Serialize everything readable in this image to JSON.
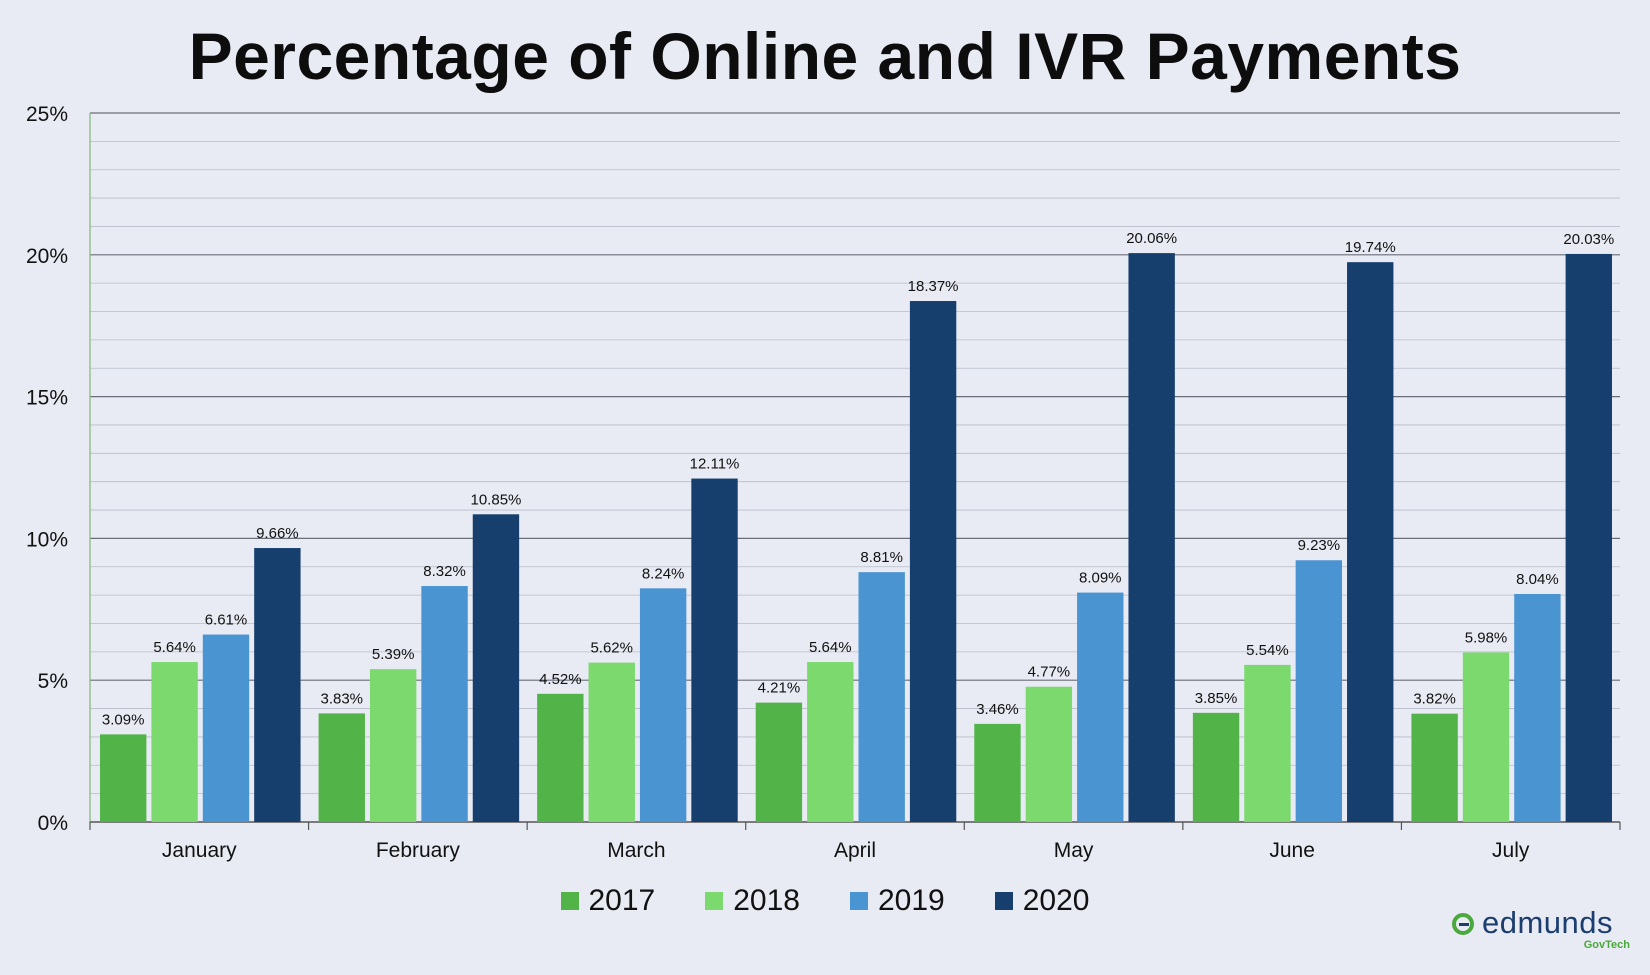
{
  "colors": {
    "background": "#e9ebf4",
    "axis": "#555555",
    "gridline": "#b9bcc8",
    "major_gridline": "#6b6e78",
    "y_axis_line": "#7fb77a"
  },
  "logo": {
    "name": "edmunds",
    "sub": "GovTech"
  },
  "chart_data": {
    "type": "bar",
    "title": "Percentage of Online and IVR Payments",
    "categories": [
      "January",
      "February",
      "March",
      "April",
      "May",
      "June",
      "July"
    ],
    "series": [
      {
        "name": "2017",
        "color": "#52b448",
        "values": [
          3.09,
          3.83,
          4.52,
          4.21,
          3.46,
          3.85,
          3.82
        ],
        "labels": [
          "3.09%",
          "3.83%",
          "4.52%",
          "4.21%",
          "3.46%",
          "3.85%",
          "3.82%"
        ]
      },
      {
        "name": "2018",
        "color": "#7bd96e",
        "values": [
          5.64,
          5.39,
          5.62,
          5.64,
          4.77,
          5.54,
          5.98
        ],
        "labels": [
          "5.64%",
          "5.39%",
          "5.62%",
          "5.64%",
          "4.77%",
          "5.54%",
          "5.98%"
        ]
      },
      {
        "name": "2019",
        "color": "#4a94d2",
        "values": [
          6.61,
          8.32,
          8.24,
          8.81,
          8.09,
          9.23,
          8.04
        ],
        "labels": [
          "6.61%",
          "8.32%",
          "8.24%",
          "8.81%",
          "8.09%",
          "9.23%",
          "8.04%"
        ]
      },
      {
        "name": "2020",
        "color": "#163f6d",
        "values": [
          9.66,
          10.85,
          12.11,
          18.37,
          20.06,
          19.74,
          20.03
        ],
        "labels": [
          "9.66%",
          "10.85%",
          "12.11%",
          "18.37%",
          "20.06%",
          "19.74%",
          "20.03%"
        ]
      }
    ],
    "ylim": [
      0,
      25
    ],
    "yticks": [
      0,
      5,
      10,
      15,
      20,
      25
    ],
    "ytick_labels": [
      "0%",
      "5%",
      "10%",
      "15%",
      "20%",
      "25%"
    ],
    "minor_grid_step": 1,
    "grid": true,
    "legend_position": "bottom-center",
    "xlabel": "",
    "ylabel": ""
  }
}
